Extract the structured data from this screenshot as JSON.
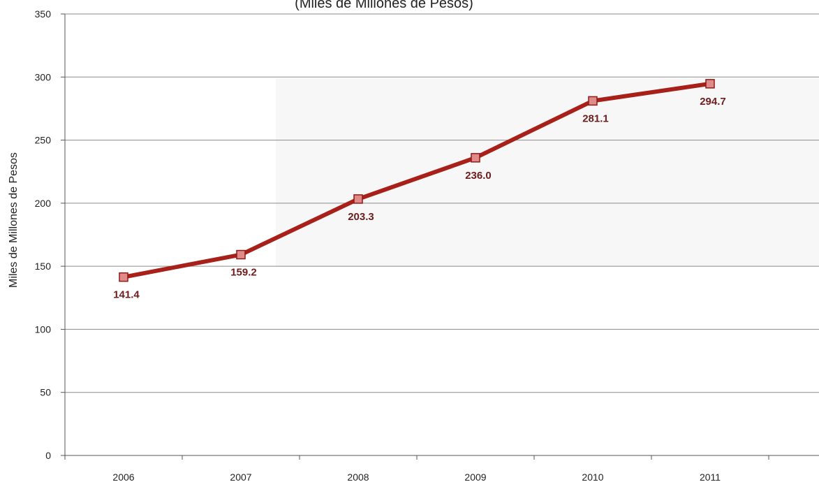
{
  "chart_data": {
    "type": "line",
    "title": "(Miles de Millones de Pesos)",
    "ylabel": "Miles de Millones de Pesos",
    "xlabel": "",
    "categories": [
      "2006",
      "2007",
      "2008",
      "2009",
      "2010",
      "2011"
    ],
    "series": [
      {
        "values": [
          141.4,
          159.2,
          203.3,
          236.0,
          281.1,
          294.7
        ]
      }
    ],
    "data_labels": [
      "141.4",
      "159.2",
      "203.3",
      "236.0",
      "281.1",
      "294.7"
    ],
    "yticks": [
      0,
      50,
      100,
      150,
      200,
      250,
      300,
      350
    ],
    "ylim": [
      0,
      350
    ],
    "grid": true,
    "colors": {
      "line": "#a8201a",
      "marker_fill": "#e08a8a",
      "marker_stroke": "#8e1b16",
      "label": "#6e1c1c",
      "grid": "#8a8a8a"
    }
  }
}
